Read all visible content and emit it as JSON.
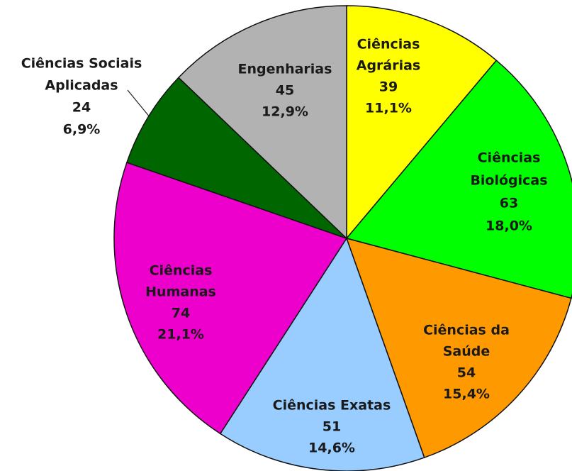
{
  "chart_data": {
    "type": "pie",
    "categories": [
      [
        "Ciências",
        "Agrárias"
      ],
      [
        "Ciências",
        "Biológicas"
      ],
      [
        "Ciências da",
        "Saúde"
      ],
      [
        "Ciências Exatas"
      ],
      [
        "Ciências",
        "Humanas"
      ],
      [
        "Ciências Sociais",
        "Aplicadas"
      ],
      [
        "Engenharias"
      ]
    ],
    "values": [
      39,
      63,
      54,
      51,
      74,
      24,
      45
    ],
    "percent_values": [
      11.1,
      18.0,
      15.4,
      14.6,
      21.1,
      6.9,
      12.9
    ],
    "percent_labels": [
      "11,1%",
      "18,0%",
      "15,4%",
      "14,6%",
      "21,1%",
      "6,9%",
      "12,9%"
    ],
    "colors": [
      "#ffff00",
      "#00ff00",
      "#ff9900",
      "#99ccff",
      "#ee00cc",
      "#006600",
      "#b2b2b2"
    ],
    "start_angle": 0,
    "direction": "clockwise"
  }
}
